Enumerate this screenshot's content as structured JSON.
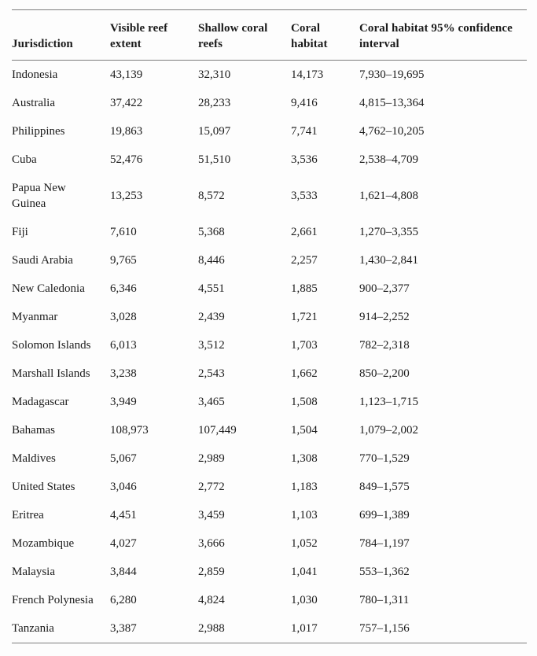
{
  "table": {
    "columns": [
      {
        "label": "Jurisdiction"
      },
      {
        "label": "Visible reef extent"
      },
      {
        "label": "Shallow coral reefs"
      },
      {
        "label": "Coral habitat"
      },
      {
        "label": "Coral habitat 95% confidence interval"
      }
    ],
    "rows": [
      {
        "jurisdiction": "Indonesia",
        "visible_reef_extent": "43,139",
        "shallow_coral_reefs": "32,310",
        "coral_habitat": "14,173",
        "confidence_interval": "7,930–19,695"
      },
      {
        "jurisdiction": "Australia",
        "visible_reef_extent": "37,422",
        "shallow_coral_reefs": "28,233",
        "coral_habitat": "9,416",
        "confidence_interval": "4,815–13,364"
      },
      {
        "jurisdiction": "Philippines",
        "visible_reef_extent": "19,863",
        "shallow_coral_reefs": "15,097",
        "coral_habitat": "7,741",
        "confidence_interval": "4,762–10,205"
      },
      {
        "jurisdiction": "Cuba",
        "visible_reef_extent": "52,476",
        "shallow_coral_reefs": "51,510",
        "coral_habitat": "3,536",
        "confidence_interval": "2,538–4,709"
      },
      {
        "jurisdiction": "Papua New Guinea",
        "visible_reef_extent": "13,253",
        "shallow_coral_reefs": "8,572",
        "coral_habitat": "3,533",
        "confidence_interval": "1,621–4,808"
      },
      {
        "jurisdiction": "Fiji",
        "visible_reef_extent": "7,610",
        "shallow_coral_reefs": "5,368",
        "coral_habitat": "2,661",
        "confidence_interval": "1,270–3,355"
      },
      {
        "jurisdiction": "Saudi Arabia",
        "visible_reef_extent": "9,765",
        "shallow_coral_reefs": "8,446",
        "coral_habitat": "2,257",
        "confidence_interval": "1,430–2,841"
      },
      {
        "jurisdiction": "New Caledonia",
        "visible_reef_extent": "6,346",
        "shallow_coral_reefs": "4,551",
        "coral_habitat": "1,885",
        "confidence_interval": "900–2,377"
      },
      {
        "jurisdiction": "Myanmar",
        "visible_reef_extent": "3,028",
        "shallow_coral_reefs": "2,439",
        "coral_habitat": "1,721",
        "confidence_interval": "914–2,252"
      },
      {
        "jurisdiction": "Solomon Islands",
        "visible_reef_extent": "6,013",
        "shallow_coral_reefs": "3,512",
        "coral_habitat": "1,703",
        "confidence_interval": "782–2,318"
      },
      {
        "jurisdiction": "Marshall Islands",
        "visible_reef_extent": "3,238",
        "shallow_coral_reefs": "2,543",
        "coral_habitat": "1,662",
        "confidence_interval": "850–2,200"
      },
      {
        "jurisdiction": "Madagascar",
        "visible_reef_extent": "3,949",
        "shallow_coral_reefs": "3,465",
        "coral_habitat": "1,508",
        "confidence_interval": "1,123–1,715"
      },
      {
        "jurisdiction": "Bahamas",
        "visible_reef_extent": "108,973",
        "shallow_coral_reefs": "107,449",
        "coral_habitat": "1,504",
        "confidence_interval": "1,079–2,002"
      },
      {
        "jurisdiction": "Maldives",
        "visible_reef_extent": "5,067",
        "shallow_coral_reefs": "2,989",
        "coral_habitat": "1,308",
        "confidence_interval": "770–1,529"
      },
      {
        "jurisdiction": "United States",
        "visible_reef_extent": "3,046",
        "shallow_coral_reefs": "2,772",
        "coral_habitat": "1,183",
        "confidence_interval": "849–1,575"
      },
      {
        "jurisdiction": "Eritrea",
        "visible_reef_extent": "4,451",
        "shallow_coral_reefs": "3,459",
        "coral_habitat": "1,103",
        "confidence_interval": "699–1,389"
      },
      {
        "jurisdiction": "Mozambique",
        "visible_reef_extent": "4,027",
        "shallow_coral_reefs": "3,666",
        "coral_habitat": "1,052",
        "confidence_interval": "784–1,197"
      },
      {
        "jurisdiction": "Malaysia",
        "visible_reef_extent": "3,844",
        "shallow_coral_reefs": "2,859",
        "coral_habitat": "1,041",
        "confidence_interval": "553–1,362"
      },
      {
        "jurisdiction": "French Polynesia",
        "visible_reef_extent": "6,280",
        "shallow_coral_reefs": "4,824",
        "coral_habitat": "1,030",
        "confidence_interval": "780–1,311"
      },
      {
        "jurisdiction": "Tanzania",
        "visible_reef_extent": "3,387",
        "shallow_coral_reefs": "2,988",
        "coral_habitat": "1,017",
        "confidence_interval": "757–1,156"
      }
    ],
    "column_keys": [
      "jurisdiction",
      "visible_reef_extent",
      "shallow_coral_reefs",
      "coral_habitat",
      "confidence_interval"
    ],
    "colors": {
      "text": "#1b1b1b",
      "rule": "#7d7d7d",
      "background": "#fdfdfd"
    }
  }
}
